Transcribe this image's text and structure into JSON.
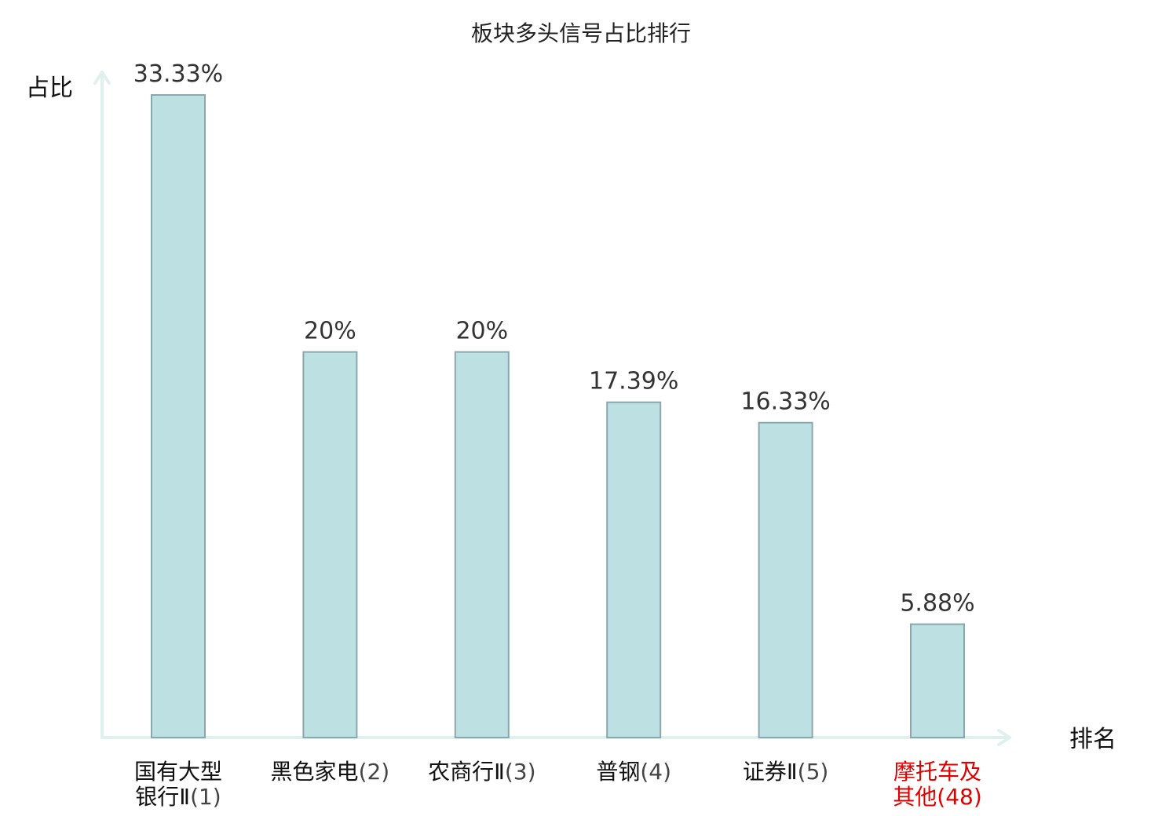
{
  "chart_data": {
    "type": "bar",
    "title": "板块多头信号占比排行",
    "ylabel": "占比",
    "xlabel": "排名",
    "ylim": [
      0,
      35
    ],
    "grid": false,
    "categories": [
      {
        "lines": [
          "国有大型",
          "银行Ⅱ"
        ],
        "rank": "(1)",
        "highlight": false
      },
      {
        "lines": [
          "黑色家电"
        ],
        "rank": "(2)",
        "highlight": false
      },
      {
        "lines": [
          "农商行Ⅱ"
        ],
        "rank": "(3)",
        "highlight": false
      },
      {
        "lines": [
          "普钢"
        ],
        "rank": "(4)",
        "highlight": false
      },
      {
        "lines": [
          "证券Ⅱ"
        ],
        "rank": "(5)",
        "highlight": false
      },
      {
        "lines": [
          "摩托车及",
          "其他"
        ],
        "rank": "(48)",
        "highlight": true
      }
    ],
    "values": [
      33.33,
      20,
      20,
      17.39,
      16.33,
      5.88
    ],
    "value_labels": [
      "33.33%",
      "20%",
      "20%",
      "17.39%",
      "16.33%",
      "5.88%"
    ]
  },
  "colors": {
    "bar_fill": "#bde0e3",
    "bar_stroke": "#8aa8ab",
    "axis": "#dff1ee",
    "label_normal": "#111111",
    "rank_normal": "#444444",
    "highlight": "#e00000"
  }
}
